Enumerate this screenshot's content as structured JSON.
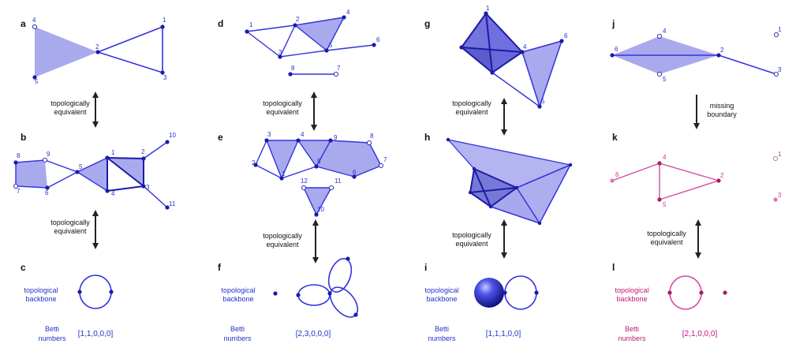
{
  "panels": {
    "a": "a",
    "b": "b",
    "c": "c",
    "d": "d",
    "e": "e",
    "f": "f",
    "g": "g",
    "h": "h",
    "i": "i",
    "j": "j",
    "k": "k",
    "l": "l"
  },
  "captions": {
    "equiv_line1": "topologically",
    "equiv_line2": "equivalent",
    "missing_line1": "missing",
    "missing_line2": "boundary",
    "backbone_line1": "topological",
    "backbone_line2": "backbone",
    "betti_line1": "Betti",
    "betti_line2": "numbers"
  },
  "betti_numbers": {
    "col1": "[1,1,0,0,0]",
    "col2": "[2,3,0,0,0]",
    "col3": "[1,1,1,0,0]",
    "col4": "[2,1,0,0,0]"
  },
  "vertex_labels": {
    "a": [
      "4",
      "2",
      "1",
      "5",
      "3"
    ],
    "b": [
      "8",
      "9",
      "5",
      "1",
      "2",
      "10",
      "7",
      "6",
      "4",
      "3",
      "11"
    ],
    "d": [
      "1",
      "2",
      "4",
      "3",
      "5",
      "6",
      "8",
      "7"
    ],
    "e": [
      "3",
      "4",
      "9",
      "8",
      "2",
      "1",
      "5",
      "6",
      "7",
      "12",
      "11",
      "10"
    ],
    "g": [
      "1",
      "4",
      "6",
      "5"
    ],
    "j": [
      "4",
      "6",
      "2",
      "5",
      "3",
      "1"
    ],
    "k": [
      "4",
      "6",
      "2",
      "5",
      "1",
      "3"
    ]
  },
  "colors": {
    "blue_stroke": "#3333dd",
    "blue_fill": "#8c8ce8",
    "blue_dark": "#1b1ba8",
    "pink_stroke": "#d44aa8",
    "pink_vertex": "#a61e5e",
    "pink_text": "#c2187a",
    "arrow": "#222222"
  }
}
